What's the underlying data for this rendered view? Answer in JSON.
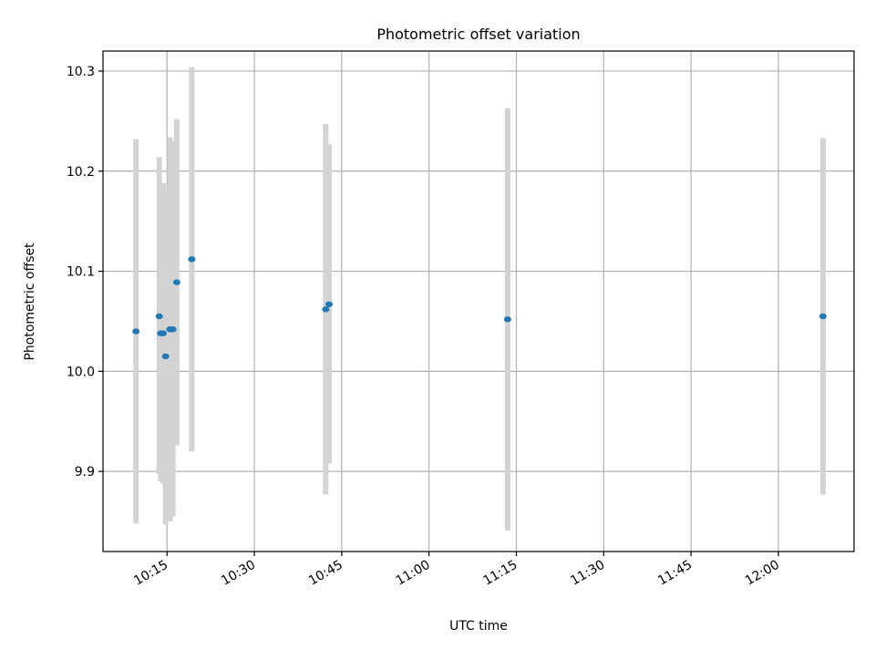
{
  "chart_data": {
    "type": "scatter",
    "title": "Photometric offset variation",
    "xlabel": "UTC time",
    "ylabel": "Photometric offset",
    "xlim": [
      "10:04",
      "12:13"
    ],
    "ylim": [
      9.82,
      10.32
    ],
    "x_ticks": [
      "10:15",
      "10:30",
      "10:45",
      "11:00",
      "11:15",
      "11:30",
      "11:45",
      "12:00"
    ],
    "y_ticks": [
      9.9,
      10.0,
      10.1,
      10.2,
      10.3
    ],
    "y_tick_labels": [
      "9.9",
      "10.0",
      "10.1",
      "10.2",
      "10.3"
    ],
    "grid": true,
    "point_color": "#1f77b4",
    "errorbar_color": "#d3d3d3",
    "points": [
      {
        "x": "10:09:40",
        "y": 10.04,
        "ylow": 9.848,
        "yhigh": 10.232
      },
      {
        "x": "10:13:40",
        "y": 10.055,
        "ylow": 9.897,
        "yhigh": 10.214
      },
      {
        "x": "10:13:55",
        "y": 10.038,
        "ylow": 9.89,
        "yhigh": 10.186
      },
      {
        "x": "10:14:20",
        "y": 10.038,
        "ylow": 9.888,
        "yhigh": 10.188
      },
      {
        "x": "10:14:45",
        "y": 10.015,
        "ylow": 9.847,
        "yhigh": 10.183
      },
      {
        "x": "10:15:30",
        "y": 10.042,
        "ylow": 9.85,
        "yhigh": 10.234
      },
      {
        "x": "10:16:00",
        "y": 10.042,
        "ylow": 9.855,
        "yhigh": 10.23
      },
      {
        "x": "10:16:40",
        "y": 10.089,
        "ylow": 9.926,
        "yhigh": 10.252
      },
      {
        "x": "10:19:15",
        "y": 10.112,
        "ylow": 9.92,
        "yhigh": 10.304
      },
      {
        "x": "10:42:15",
        "y": 10.062,
        "ylow": 9.877,
        "yhigh": 10.247
      },
      {
        "x": "10:42:50",
        "y": 10.067,
        "ylow": 9.908,
        "yhigh": 10.227
      },
      {
        "x": "11:13:30",
        "y": 10.052,
        "ylow": 9.841,
        "yhigh": 10.263
      },
      {
        "x": "12:07:40",
        "y": 10.055,
        "ylow": 9.877,
        "yhigh": 10.233
      }
    ]
  }
}
